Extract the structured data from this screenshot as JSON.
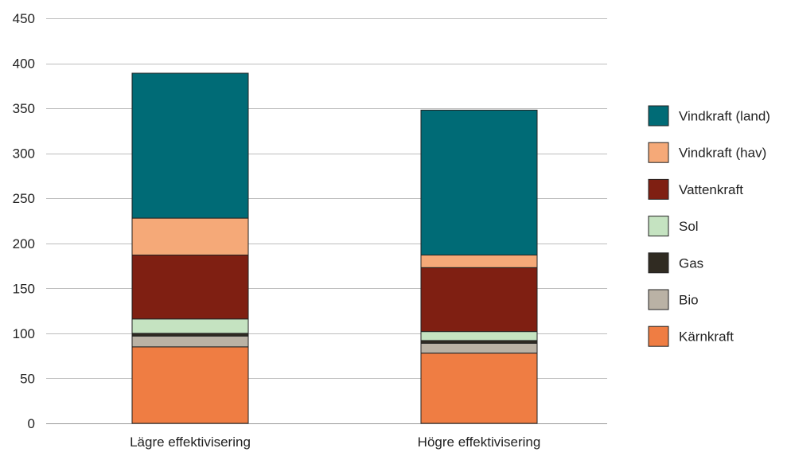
{
  "chart_data": {
    "type": "bar",
    "stacked": true,
    "categories": [
      "Lägre effektivisering",
      "Högre effektivisering"
    ],
    "ylim": [
      0,
      450
    ],
    "yticks": [
      0,
      50,
      100,
      150,
      200,
      250,
      300,
      350,
      400,
      450
    ],
    "grid": true,
    "legend_position": "right",
    "series": [
      {
        "name": "Kärnkraft",
        "color": "#ef7d43",
        "values": [
          85,
          78
        ]
      },
      {
        "name": "Bio",
        "color": "#bab2a5",
        "values": [
          12,
          11
        ]
      },
      {
        "name": "Gas",
        "color": "#302b22",
        "values": [
          3,
          3
        ]
      },
      {
        "name": "Sol",
        "color": "#c5e3c1",
        "values": [
          16,
          10
        ]
      },
      {
        "name": "Vattenkraft",
        "color": "#7f1f12",
        "values": [
          71,
          71
        ]
      },
      {
        "name": "Vindkraft (hav)",
        "color": "#f5a978",
        "values": [
          41,
          14
        ]
      },
      {
        "name": "Vindkraft (land)",
        "color": "#006b76",
        "values": [
          161,
          161
        ]
      }
    ],
    "legend_order": [
      "Vindkraft (land)",
      "Vindkraft (hav)",
      "Vattenkraft",
      "Sol",
      "Gas",
      "Bio",
      "Kärnkraft"
    ]
  }
}
